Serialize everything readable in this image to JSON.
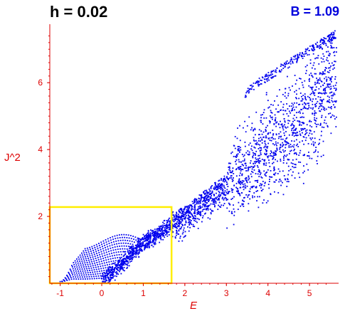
{
  "header": {
    "left_text": "h = 0.02",
    "right_text": "B = 1.09"
  },
  "colors": {
    "points": "#0000ee",
    "axes": "#dd0000",
    "box": "#ffee00",
    "header_right": "#0000dd"
  },
  "chart_data": {
    "type": "scatter",
    "xlabel": "E",
    "ylabel": "J^2",
    "xlim": [
      -1.25,
      5.7
    ],
    "ylim": [
      0.0,
      7.75
    ],
    "xticks": [
      -1,
      0,
      1,
      2,
      3,
      4,
      5
    ],
    "yticks": [
      2,
      4,
      6
    ],
    "grid": false,
    "legend": "none",
    "highlight_box": {
      "x": [
        -1.25,
        1.68
      ],
      "y": [
        0.0,
        2.28
      ]
    },
    "trend_points": [
      [
        0.0,
        0.05
      ],
      [
        0.5,
        0.6
      ],
      [
        1.0,
        1.2
      ],
      [
        1.7,
        1.75
      ],
      [
        2.2,
        2.2
      ],
      [
        2.8,
        2.75
      ],
      [
        3.5,
        3.4
      ],
      [
        4.2,
        4.1
      ],
      [
        5.0,
        5.1
      ],
      [
        5.6,
        6.4
      ]
    ],
    "upper_boundary": [
      [
        -1.0,
        0.15
      ],
      [
        -0.5,
        0.7
      ],
      [
        0.0,
        1.25
      ],
      [
        0.5,
        1.45
      ],
      [
        1.2,
        1.85
      ],
      [
        2.0,
        2.3
      ],
      [
        3.0,
        3.3
      ],
      [
        3.5,
        5.9
      ],
      [
        4.5,
        6.7
      ],
      [
        5.6,
        7.55
      ]
    ]
  }
}
